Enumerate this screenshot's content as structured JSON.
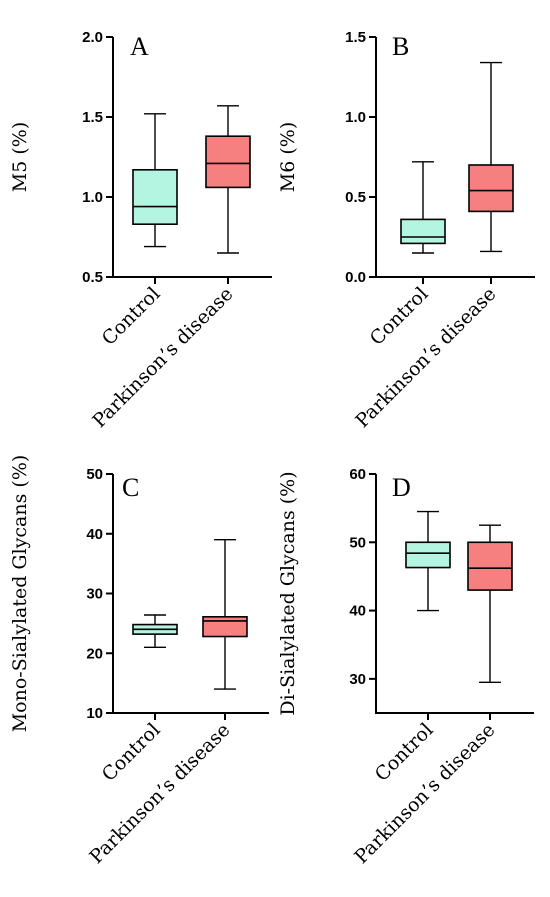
{
  "colors": {
    "control": "#b3f5e0",
    "parkinsons": "#f67f7f"
  },
  "chart_data": [
    {
      "type": "box",
      "panel": "A",
      "ylabel": "M5 (%)",
      "ylim": [
        0.5,
        2.0
      ],
      "yticks": [
        "0.5",
        "1.0",
        "1.5",
        "2.0"
      ],
      "ytick_values": [
        0.5,
        1.0,
        1.5,
        2.0
      ],
      "categories": [
        "Control",
        "Parkinson’s disease"
      ],
      "boxes": [
        {
          "min": 0.69,
          "q1": 0.83,
          "median": 0.94,
          "q3": 1.17,
          "max": 1.52
        },
        {
          "min": 0.65,
          "q1": 1.06,
          "median": 1.21,
          "q3": 1.38,
          "max": 1.57
        }
      ]
    },
    {
      "type": "box",
      "panel": "B",
      "ylabel": "M6 (%)",
      "ylim": [
        0.0,
        1.5
      ],
      "yticks": [
        "0.0",
        "0.5",
        "1.0",
        "1.5"
      ],
      "ytick_values": [
        0.0,
        0.5,
        1.0,
        1.5
      ],
      "categories": [
        "Control",
        "Parkinson’s disease"
      ],
      "boxes": [
        {
          "min": 0.15,
          "q1": 0.21,
          "median": 0.25,
          "q3": 0.36,
          "max": 0.72
        },
        {
          "min": 0.16,
          "q1": 0.41,
          "median": 0.54,
          "q3": 0.7,
          "max": 1.34
        }
      ]
    },
    {
      "type": "box",
      "panel": "C",
      "ylabel": "Mono-Sialylated Glycans (%)",
      "ylim": [
        10,
        50
      ],
      "yticks": [
        "10",
        "20",
        "30",
        "40",
        "50"
      ],
      "ytick_values": [
        10,
        20,
        30,
        40,
        50
      ],
      "categories": [
        "Control",
        "Parkinson’s disease"
      ],
      "boxes": [
        {
          "min": 21.0,
          "q1": 23.2,
          "median": 24.0,
          "q3": 24.8,
          "max": 26.4
        },
        {
          "min": 14.0,
          "q1": 22.8,
          "median": 25.4,
          "q3": 26.1,
          "max": 39.0
        }
      ]
    },
    {
      "type": "box",
      "panel": "D",
      "ylabel": "Di-Sialylated Glycans (%)",
      "ylim": [
        25,
        60
      ],
      "yticks": [
        "30",
        "40",
        "50",
        "60"
      ],
      "ytick_values": [
        30,
        40,
        50,
        60
      ],
      "categories": [
        "Control",
        "Parkinson’s disease"
      ],
      "boxes": [
        {
          "min": 40.0,
          "q1": 46.3,
          "median": 48.4,
          "q3": 50.0,
          "max": 54.5
        },
        {
          "min": 29.5,
          "q1": 43.0,
          "median": 46.2,
          "q3": 50.0,
          "max": 52.5
        }
      ]
    }
  ]
}
